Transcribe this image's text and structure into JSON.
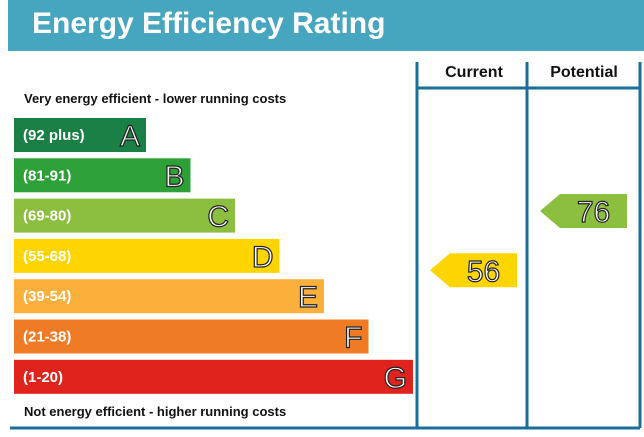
{
  "title": "Energy Efficiency Rating",
  "top_caption": "Very energy efficient - lower running costs",
  "bottom_caption": "Not energy efficient - higher running costs",
  "columns": {
    "current": "Current",
    "potential": "Potential"
  },
  "chart_data": {
    "type": "bar",
    "categories": [
      "(92 plus)",
      "(81-91)",
      "(69-80)",
      "(55-68)",
      "(39-54)",
      "(21-38)",
      "(1-20)"
    ],
    "bands": [
      {
        "letter": "A",
        "range": "(92 plus)",
        "min": 92,
        "max": 100,
        "color": "#1a8045"
      },
      {
        "letter": "B",
        "range": "(81-91)",
        "min": 81,
        "max": 91,
        "color": "#2ea038"
      },
      {
        "letter": "C",
        "range": "(69-80)",
        "min": 69,
        "max": 80,
        "color": "#8cbf3f"
      },
      {
        "letter": "D",
        "range": "(55-68)",
        "min": 55,
        "max": 68,
        "color": "#ffd500"
      },
      {
        "letter": "E",
        "range": "(39-54)",
        "min": 39,
        "max": 54,
        "color": "#fbb03b"
      },
      {
        "letter": "F",
        "range": "(21-38)",
        "min": 21,
        "max": 38,
        "color": "#f07b25"
      },
      {
        "letter": "G",
        "range": "(1-20)",
        "min": 1,
        "max": 20,
        "color": "#e0231c"
      }
    ],
    "current": {
      "value": 56,
      "label": "56",
      "band": "D",
      "color": "#ffd500"
    },
    "potential": {
      "value": 76,
      "label": "76",
      "band": "C",
      "color": "#8cbf3f"
    }
  }
}
